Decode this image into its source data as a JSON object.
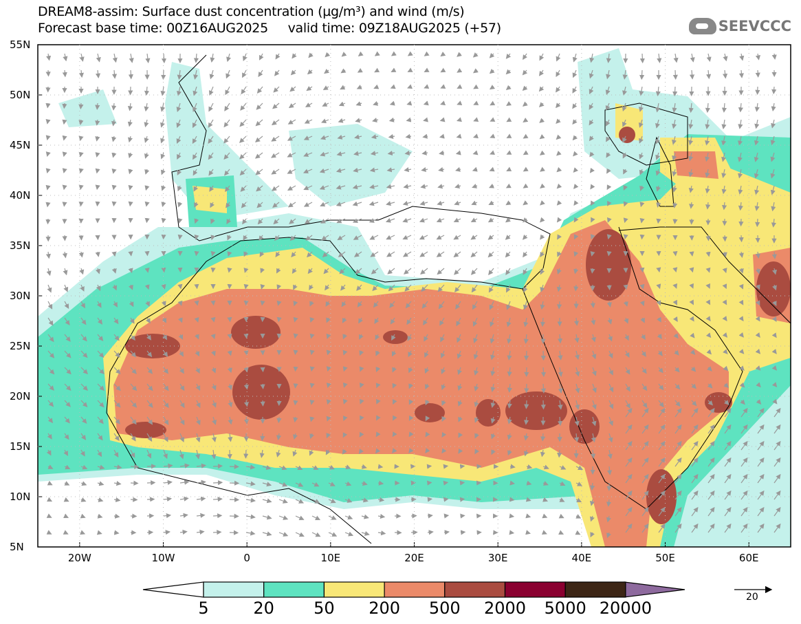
{
  "header": {
    "title": "DREAM8-assim: Surface dust concentration (µg/m³) and wind (m/s)",
    "subtitle": "Forecast base time: 00Z16AUG2025     valid time: 09Z18AUG2025 (+57)",
    "logo": "SEEVCCC"
  },
  "axes": {
    "lat_labels": [
      "55N",
      "50N",
      "45N",
      "40N",
      "35N",
      "30N",
      "25N",
      "20N",
      "15N",
      "10N",
      "5N"
    ],
    "lon_labels": [
      "20W",
      "10W",
      "0",
      "10E",
      "20E",
      "30E",
      "40E",
      "50E",
      "60E"
    ]
  },
  "legend": {
    "levels": [
      "5",
      "20",
      "50",
      "200",
      "500",
      "2000",
      "5000",
      "20000"
    ],
    "colors": [
      "#c4f1eb",
      "#5ee3c0",
      "#f8e777",
      "#eb8a69",
      "#aa4c40",
      "#8a0030",
      "#3d2616",
      "#8e6a9e"
    ],
    "wind_reference": "20"
  }
}
